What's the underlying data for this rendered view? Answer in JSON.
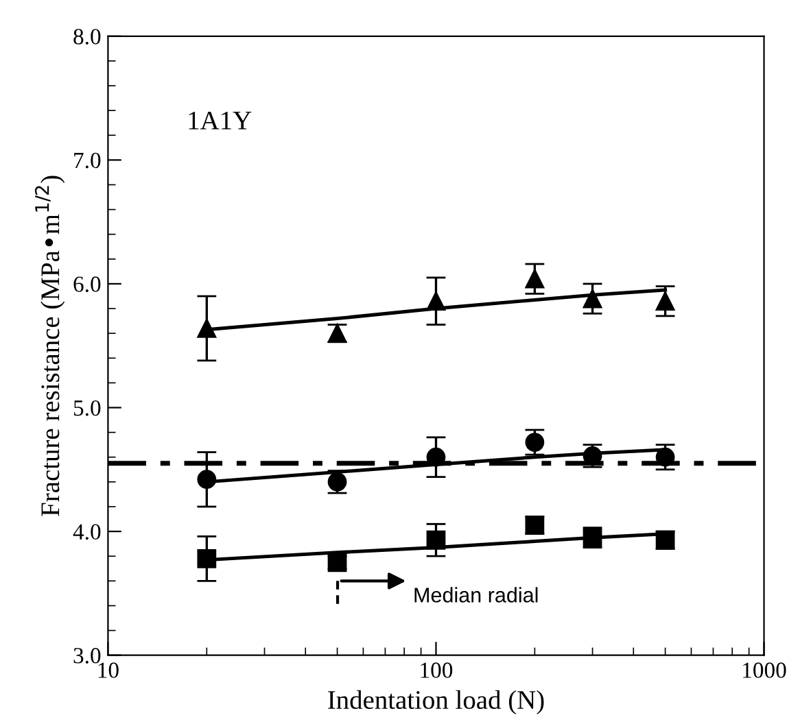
{
  "chart_data": {
    "type": "scatter",
    "xlabel": "Indentation load (N)",
    "ylabel": "Fracture resistance (MPa•m$^{1/2}$)",
    "log": "x",
    "xlim": [
      10,
      1000
    ],
    "xticks": [
      10,
      100,
      1000
    ],
    "ylim": [
      3.0,
      8.0
    ],
    "yticks": [
      {
        "value": 3.0,
        "label": "3.0"
      },
      {
        "value": 4.0,
        "label": "4.0"
      },
      {
        "value": 5.0,
        "label": "5.0"
      },
      {
        "value": 6.0,
        "label": "6.0"
      },
      {
        "value": 7.0,
        "label": "7.0"
      },
      {
        "value": 8.0,
        "label": "8.0"
      }
    ],
    "grid": false,
    "x": [
      20,
      50,
      100,
      200,
      300,
      500
    ],
    "series": [
      {
        "marker": "triangle",
        "color": "#000000",
        "values": [
          5.64,
          5.6,
          5.86,
          6.04,
          5.88,
          5.86
        ],
        "errors": [
          0.26,
          0.07,
          0.19,
          0.12,
          0.12,
          0.12
        ]
      },
      {
        "type": "line",
        "marker": "none",
        "color": "#000000",
        "values": [
          5.63,
          5.72,
          5.8,
          5.87,
          5.91,
          5.95
        ]
      },
      {
        "marker": "circle",
        "color": "#000000",
        "values": [
          4.42,
          4.4,
          4.6,
          4.72,
          4.61,
          4.6
        ],
        "errors": [
          0.22,
          0.09,
          0.16,
          0.1,
          0.09,
          0.1
        ]
      },
      {
        "type": "line",
        "marker": "none",
        "color": "#000000",
        "values": [
          4.4,
          4.48,
          4.54,
          4.6,
          4.63,
          4.66
        ]
      },
      {
        "marker": "square",
        "color": "#000000",
        "values": [
          3.78,
          3.75,
          3.93,
          4.05,
          3.95,
          3.93
        ],
        "errors": [
          0.18,
          0.05,
          0.13,
          0.07,
          0.08,
          0.07
        ]
      },
      {
        "type": "line",
        "marker": "none",
        "color": "#000000",
        "values": [
          3.77,
          3.83,
          3.87,
          3.92,
          3.95,
          3.98
        ]
      }
    ],
    "ref_lines": [
      {
        "axis": "y",
        "value": 4.55,
        "label": null,
        "color": "#000000",
        "line_style": "dashdot"
      }
    ],
    "annotations": [
      "1A1Y",
      "Median radial"
    ]
  }
}
